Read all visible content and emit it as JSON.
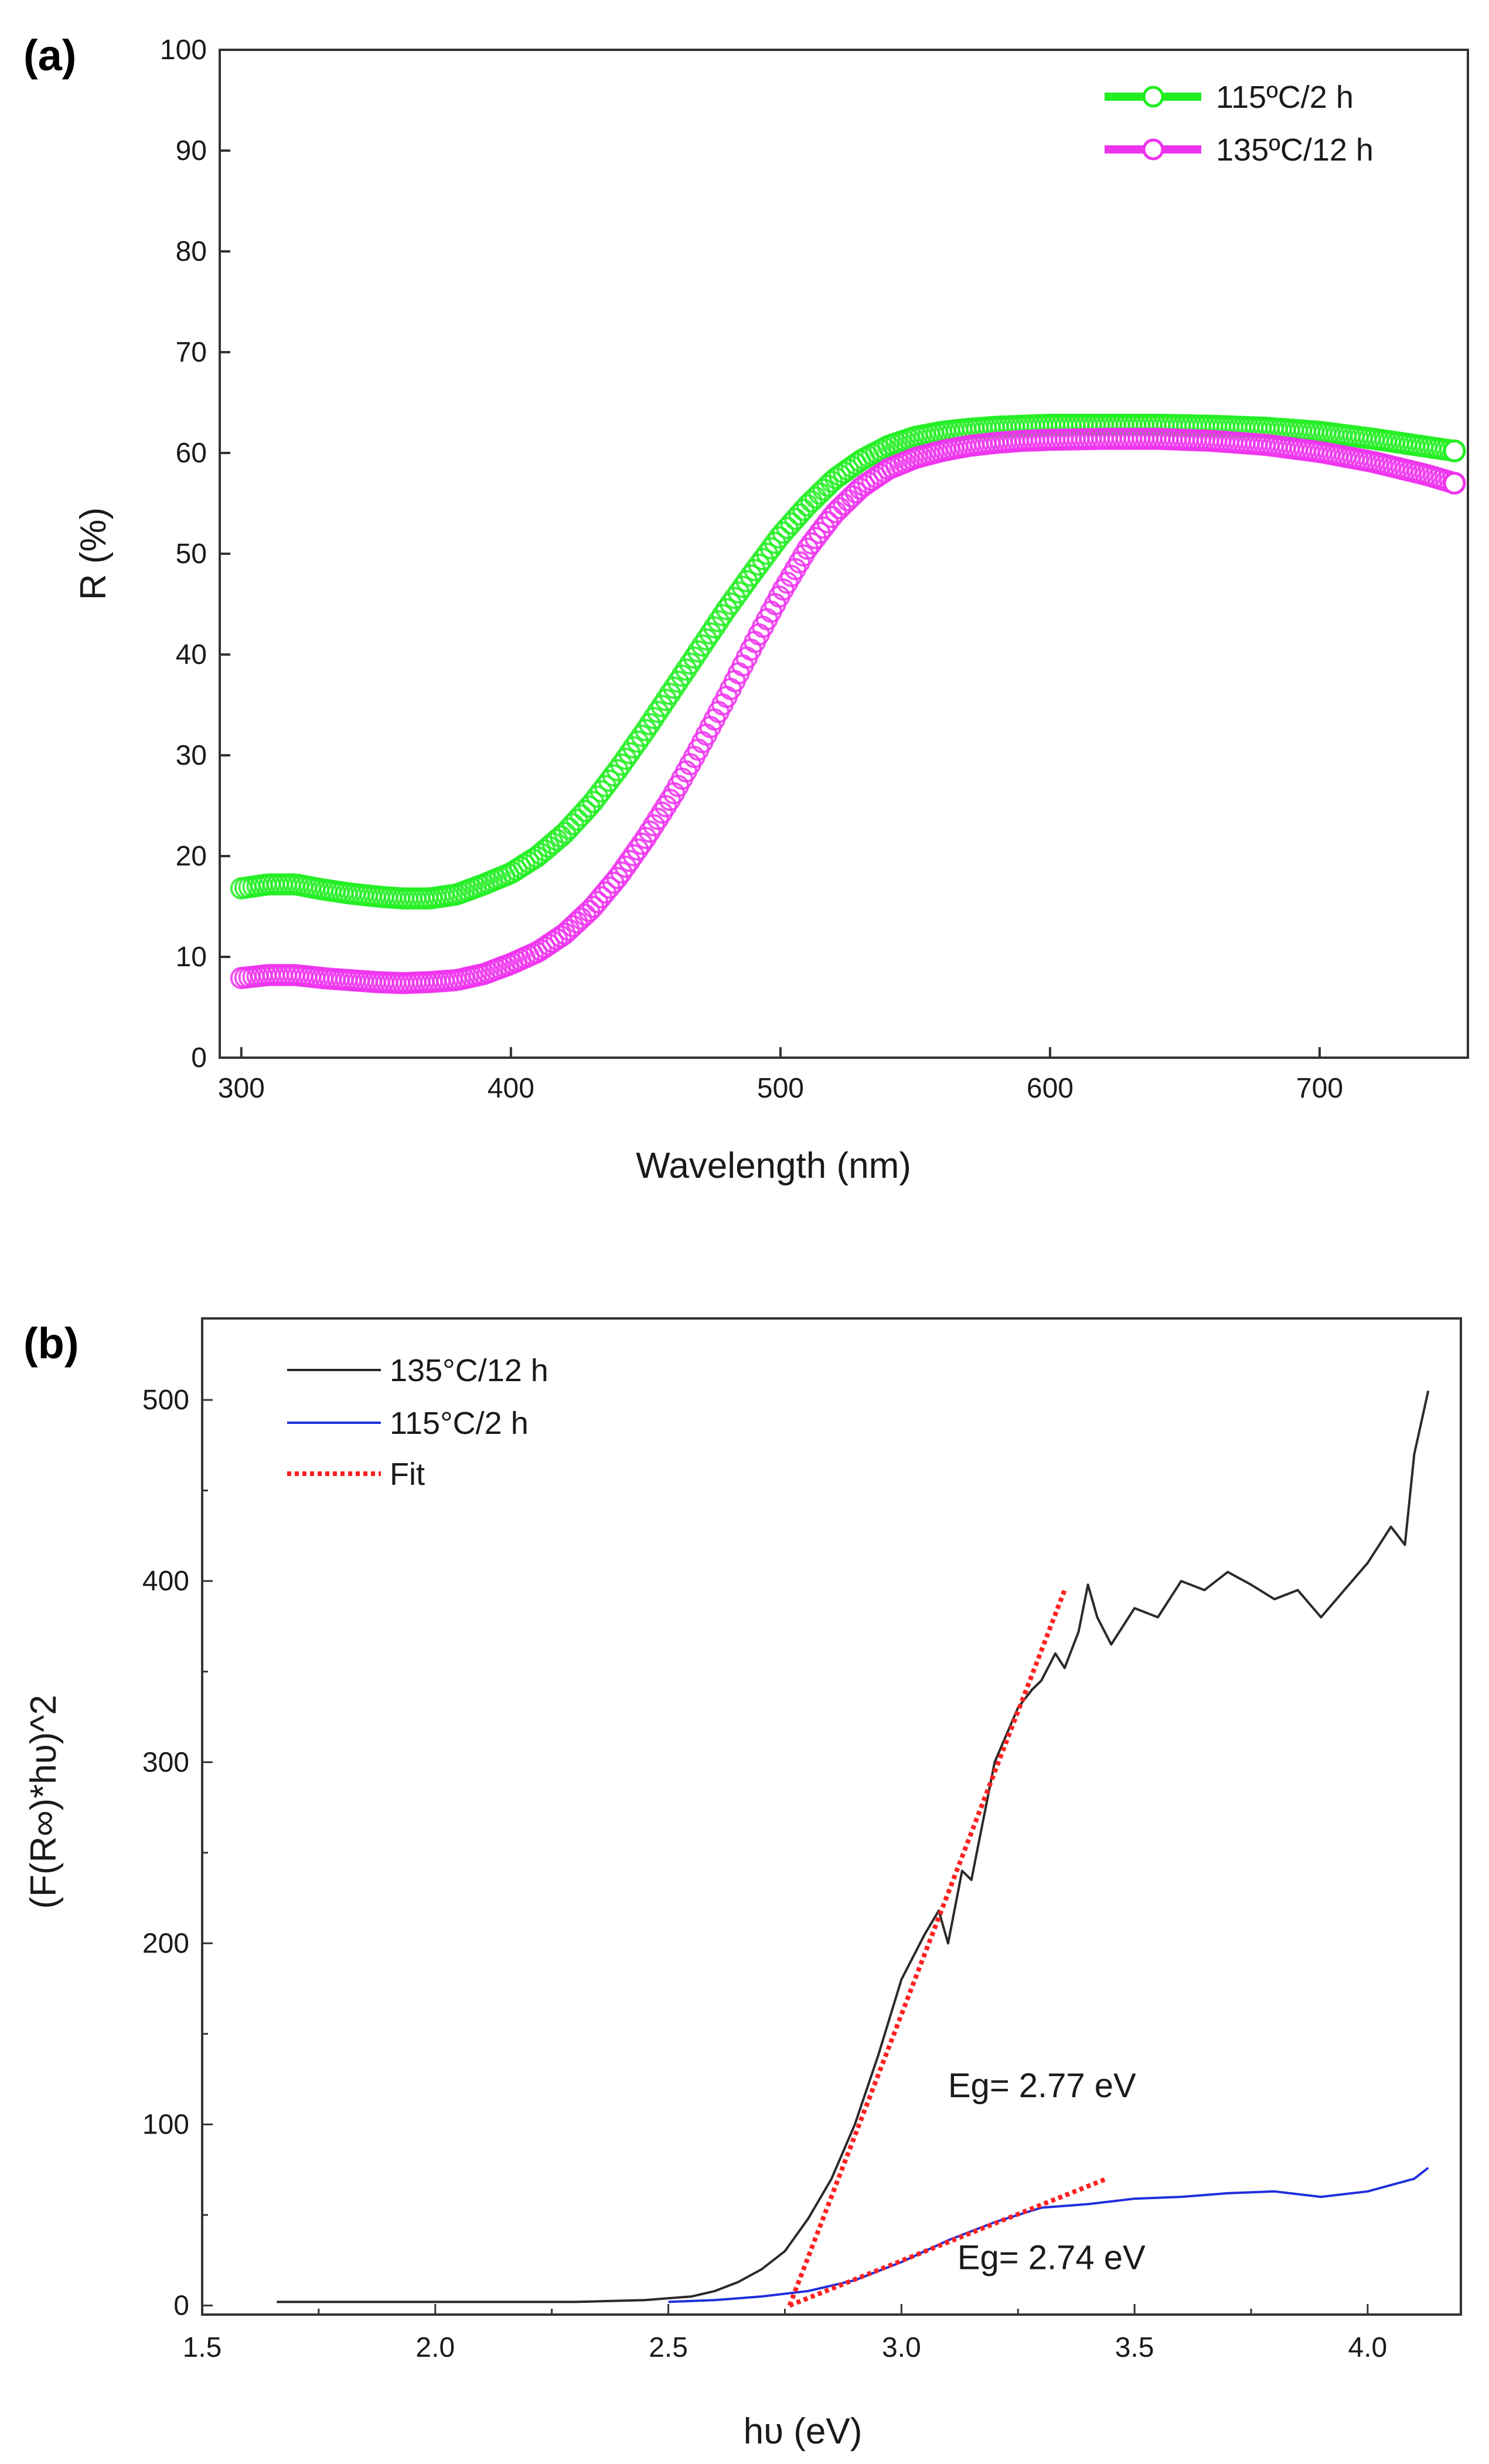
{
  "chart_data": [
    {
      "id": "a",
      "type": "scatter",
      "panel_label": "(a)",
      "xlabel": "Wavelength (nm)",
      "ylabel": "R (%)",
      "xlim": [
        292,
        755
      ],
      "ylim": [
        0,
        100
      ],
      "xticks": [
        300,
        400,
        500,
        600,
        700
      ],
      "yticks": [
        0,
        10,
        20,
        30,
        40,
        50,
        60,
        70,
        80,
        90,
        100
      ],
      "legend_position": "top-right",
      "series": [
        {
          "name": "115ºC/2 h",
          "color": "#22ee22",
          "marker": "open-circle",
          "x": [
            300,
            310,
            320,
            330,
            340,
            350,
            360,
            370,
            380,
            390,
            400,
            410,
            420,
            430,
            440,
            450,
            460,
            470,
            480,
            490,
            500,
            510,
            520,
            530,
            540,
            550,
            560,
            570,
            580,
            590,
            600,
            620,
            640,
            660,
            680,
            700,
            720,
            740,
            750
          ],
          "y": [
            16.8,
            17.2,
            17.2,
            16.7,
            16.3,
            16.0,
            15.8,
            15.8,
            16.2,
            17.2,
            18.3,
            20.0,
            22.3,
            25.2,
            28.7,
            32.5,
            36.5,
            40.5,
            44.5,
            48.2,
            51.8,
            54.8,
            57.4,
            59.3,
            60.7,
            61.6,
            62.1,
            62.4,
            62.6,
            62.7,
            62.8,
            62.8,
            62.8,
            62.7,
            62.5,
            62.1,
            61.4,
            60.6,
            60.2
          ]
        },
        {
          "name": "135ºC/12 h",
          "color": "#ee33ee",
          "marker": "open-circle",
          "x": [
            300,
            310,
            320,
            330,
            340,
            350,
            360,
            370,
            380,
            390,
            400,
            410,
            420,
            430,
            440,
            450,
            460,
            470,
            480,
            490,
            500,
            510,
            520,
            530,
            540,
            550,
            560,
            570,
            580,
            590,
            600,
            620,
            640,
            660,
            680,
            700,
            720,
            740,
            750
          ],
          "y": [
            7.9,
            8.2,
            8.2,
            7.9,
            7.7,
            7.5,
            7.4,
            7.5,
            7.7,
            8.3,
            9.3,
            10.5,
            12.3,
            14.8,
            18.0,
            21.8,
            26.0,
            30.8,
            35.8,
            41.0,
            46.0,
            50.5,
            54.0,
            56.6,
            58.4,
            59.5,
            60.2,
            60.7,
            61.0,
            61.2,
            61.3,
            61.4,
            61.4,
            61.2,
            60.8,
            60.1,
            59.1,
            57.8,
            57.0
          ]
        }
      ]
    },
    {
      "id": "b",
      "type": "line",
      "panel_label": "(b)",
      "xlabel": "hυ (eV)",
      "ylabel": "(F(R∞)*hυ)^2",
      "xlim": [
        1.5,
        4.2
      ],
      "ylim": [
        -5,
        545
      ],
      "xticks": [
        "1.5",
        "2.0",
        "2.5",
        "3.0",
        "3.5",
        "4.0"
      ],
      "yticks": [
        "0",
        "100",
        "200",
        "300",
        "400",
        "500"
      ],
      "legend_position": "top-left",
      "series": [
        {
          "name": "135°C/12 h",
          "color": "#2a2a2a",
          "style": "solid",
          "x": [
            1.66,
            2.0,
            2.3,
            2.45,
            2.55,
            2.6,
            2.65,
            2.7,
            2.75,
            2.8,
            2.85,
            2.9,
            2.95,
            3.0,
            3.05,
            3.08,
            3.1,
            3.13,
            3.15,
            3.2,
            3.25,
            3.28,
            3.3,
            3.33,
            3.35,
            3.38,
            3.4,
            3.42,
            3.45,
            3.5,
            3.55,
            3.6,
            3.65,
            3.7,
            3.75,
            3.8,
            3.85,
            3.9,
            3.95,
            4.0,
            4.05,
            4.08,
            4.1,
            4.13
          ],
          "y": [
            2,
            2,
            2,
            3,
            5,
            8,
            13,
            20,
            30,
            48,
            70,
            100,
            138,
            180,
            205,
            218,
            200,
            240,
            235,
            300,
            330,
            340,
            345,
            360,
            352,
            372,
            398,
            380,
            365,
            385,
            380,
            400,
            395,
            405,
            398,
            390,
            395,
            380,
            395,
            410,
            430,
            420,
            470,
            505
          ]
        },
        {
          "name": "115°C/2 h",
          "color": "#1f2fdd",
          "style": "solid",
          "x": [
            2.5,
            2.6,
            2.7,
            2.8,
            2.9,
            3.0,
            3.1,
            3.2,
            3.3,
            3.4,
            3.5,
            3.6,
            3.7,
            3.8,
            3.9,
            4.0,
            4.1,
            4.13
          ],
          "y": [
            2,
            3,
            5,
            8,
            14,
            24,
            36,
            46,
            54,
            56,
            59,
            60,
            62,
            63,
            60,
            63,
            70,
            76
          ]
        },
        {
          "name": "Fit",
          "color": "#ff2020",
          "style": "dotted",
          "segments": [
            {
              "x": [
                2.76,
                3.35
              ],
              "y": [
                0,
                395
              ]
            },
            {
              "x": [
                2.76,
                3.44
              ],
              "y": [
                0,
                70
              ]
            }
          ]
        }
      ],
      "annotations": [
        {
          "text": "Eg= 2.77 eV",
          "x": 3.1,
          "y": 115
        },
        {
          "text": "Eg= 2.74 eV",
          "x": 3.12,
          "y": 20
        }
      ]
    }
  ]
}
